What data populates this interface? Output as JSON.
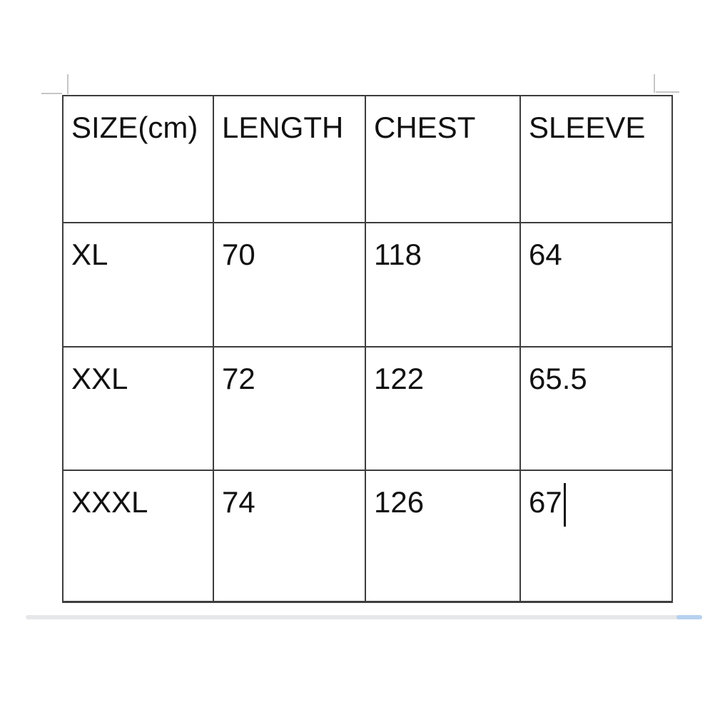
{
  "size_chart": {
    "headers": [
      "SIZE(cm)",
      "LENGTH",
      "CHEST",
      "SLEEVE"
    ],
    "rows": [
      {
        "size": "XL",
        "length": "70",
        "chest": "118",
        "sleeve": "64"
      },
      {
        "size": "XXL",
        "length": "72",
        "chest": "122",
        "sleeve": "65.5"
      },
      {
        "size": "XXXL",
        "length": "74",
        "chest": "126",
        "sleeve": "67"
      }
    ]
  },
  "chart_data": {
    "type": "table",
    "columns": [
      "SIZE(cm)",
      "LENGTH",
      "CHEST",
      "SLEEVE"
    ],
    "rows": [
      [
        "XL",
        "70",
        "118",
        "64"
      ],
      [
        "XXL",
        "72",
        "122",
        "65.5"
      ],
      [
        "XXXL",
        "74",
        "126",
        "67"
      ]
    ]
  },
  "editor": {
    "caret_visible": true,
    "caret_after_text": "67"
  },
  "colors": {
    "border": "#3d3d3d",
    "text": "#111111",
    "caret": "#111111",
    "scroll-track": "#e6e7e9",
    "scroll-thumb": "#b7d1f0",
    "cropmark": "#c6c6c6",
    "page-bg": "#ffffff"
  }
}
